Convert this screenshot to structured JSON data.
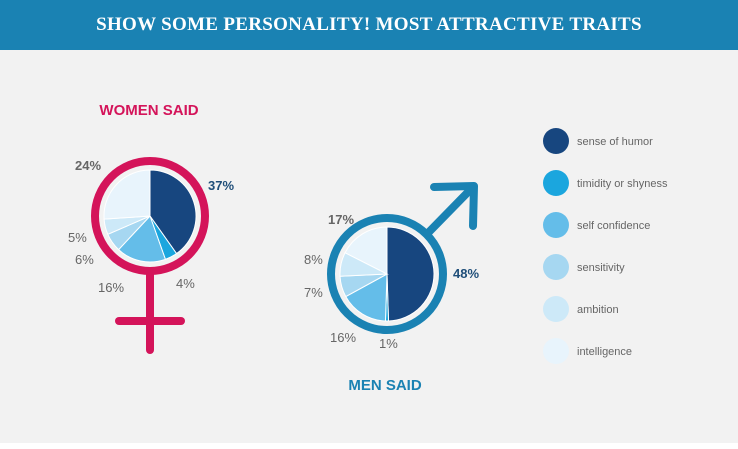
{
  "banner": {
    "title": "SHOW SOME PERSONALITY! MOST ATTRACTIVE TRAITS"
  },
  "colors": {
    "banner": "#1a82b3",
    "women_accent": "#d4145a",
    "men_accent": "#1a82b3",
    "label_women_main": "#1f4e79",
    "label_men_main": "#1f4e79",
    "label_muted": "#666666"
  },
  "chart_data": [
    {
      "type": "pie",
      "title": "WOMEN SAID",
      "categories": [
        "sense of humor",
        "timidity or shyness",
        "self confidence",
        "sensitivity",
        "ambition",
        "intelligence"
      ],
      "values": [
        37,
        4,
        16,
        6,
        5,
        24
      ],
      "value_labels": [
        "37%",
        "4%",
        "16%",
        "6%",
        "5%",
        "24%"
      ],
      "colors": [
        "#17467f",
        "#1ba6de",
        "#64bde9",
        "#a6d7f1",
        "#cde9f8",
        "#e8f4fc"
      ]
    },
    {
      "type": "pie",
      "title": "MEN SAID",
      "categories": [
        "sense of humor",
        "timidity or shyness",
        "self confidence",
        "sensitivity",
        "ambition",
        "intelligence"
      ],
      "values": [
        48,
        1,
        16,
        7,
        8,
        17
      ],
      "value_labels": [
        "48%",
        "1%",
        "16%",
        "7%",
        "8%",
        "17%"
      ],
      "colors": [
        "#17467f",
        "#1ba6de",
        "#64bde9",
        "#a6d7f1",
        "#cde9f8",
        "#e8f4fc"
      ]
    }
  ],
  "legend": [
    {
      "label": "sense of humor",
      "color": "#17467f"
    },
    {
      "label": "timidity or shyness",
      "color": "#1ba6de"
    },
    {
      "label": "self confidence",
      "color": "#64bde9"
    },
    {
      "label": "sensitivity",
      "color": "#a6d7f1"
    },
    {
      "label": "ambition",
      "color": "#cde9f8"
    },
    {
      "label": "intelligence",
      "color": "#e8f4fc"
    }
  ]
}
